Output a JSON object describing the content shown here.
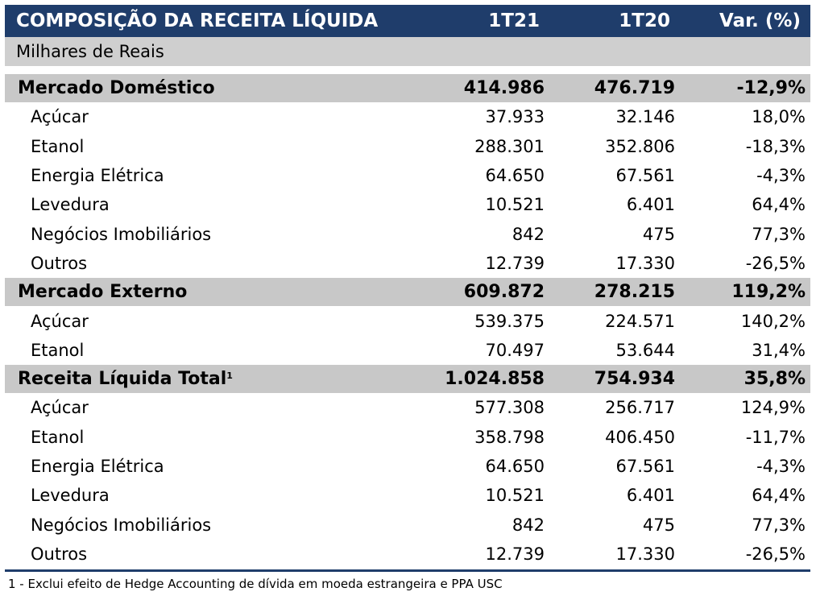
{
  "header": {
    "title": "COMPOSIÇÃO DA RECEITA LÍQUIDA",
    "col1": "1T21",
    "col2": "1T20",
    "col3": "Var. (%)"
  },
  "units": "Milhares de Reais",
  "sections": [
    {
      "label": "Mercado Doméstico",
      "values": [
        "414.986",
        "476.719",
        "-12,9%"
      ],
      "rows": [
        {
          "label": "Açúcar",
          "values": [
            "37.933",
            "32.146",
            "18,0%"
          ]
        },
        {
          "label": "Etanol",
          "values": [
            "288.301",
            "352.806",
            "-18,3%"
          ]
        },
        {
          "label": "Energia Elétrica",
          "values": [
            "64.650",
            "67.561",
            "-4,3%"
          ]
        },
        {
          "label": "Levedura",
          "values": [
            "10.521",
            "6.401",
            "64,4%"
          ]
        },
        {
          "label": "Negócios Imobiliários",
          "values": [
            "842",
            "475",
            "77,3%"
          ]
        },
        {
          "label": "Outros",
          "values": [
            "12.739",
            "17.330",
            "-26,5%"
          ]
        }
      ]
    },
    {
      "label": "Mercado Externo",
      "values": [
        "609.872",
        "278.215",
        "119,2%"
      ],
      "rows": [
        {
          "label": "Açúcar",
          "values": [
            "539.375",
            "224.571",
            "140,2%"
          ]
        },
        {
          "label": "Etanol",
          "values": [
            "70.497",
            "53.644",
            "31,4%"
          ]
        }
      ]
    },
    {
      "label": "Receita Líquida Total",
      "sup": "1",
      "values": [
        "1.024.858",
        "754.934",
        "35,8%"
      ],
      "rows": [
        {
          "label": "Açúcar",
          "values": [
            "577.308",
            "256.717",
            "124,9%"
          ]
        },
        {
          "label": "Etanol",
          "values": [
            "358.798",
            "406.450",
            "-11,7%"
          ]
        },
        {
          "label": "Energia Elétrica",
          "values": [
            "64.650",
            "67.561",
            "-4,3%"
          ]
        },
        {
          "label": "Levedura",
          "values": [
            "10.521",
            "6.401",
            "64,4%"
          ]
        },
        {
          "label": "Negócios Imobiliários",
          "values": [
            "842",
            "475",
            "77,3%"
          ]
        },
        {
          "label": "Outros",
          "values": [
            "12.739",
            "17.330",
            "-26,5%"
          ]
        }
      ]
    }
  ],
  "footnote": "1 - Exclui efeito de Hedge Accounting de dívida em moeda estrangeira e PPA USC"
}
